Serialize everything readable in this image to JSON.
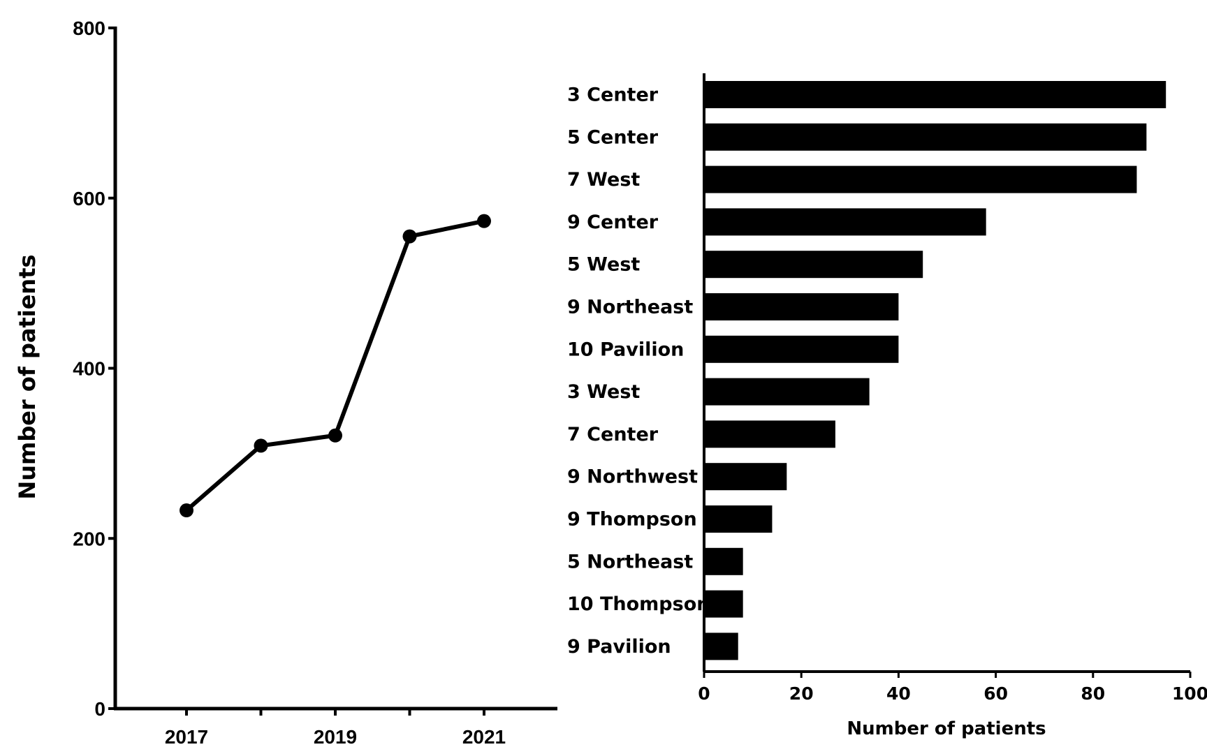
{
  "chart_data": [
    {
      "type": "line",
      "title": "",
      "xlabel": "",
      "ylabel": "Number of patients",
      "x": [
        2017,
        2018,
        2019,
        2020,
        2021
      ],
      "xtick_labels": [
        "2017",
        "2019",
        "2021"
      ],
      "series": [
        {
          "values": [
            233,
            309,
            321,
            555,
            573
          ]
        }
      ],
      "ylim": [
        0,
        800
      ],
      "yticks": [
        "0",
        "200",
        "400",
        "600",
        "800"
      ],
      "grid": false
    },
    {
      "type": "bar",
      "orientation": "horizontal",
      "title": "",
      "xlabel": "Number of patients",
      "ylabel": "",
      "categories": [
        "3 Center",
        "5 Center",
        "7 West",
        "9 Center",
        "5 West",
        "9 Northeast",
        "10 Pavilion",
        "3 West",
        "7 Center",
        "9 Northwest",
        "9 Thompson",
        "5 Northeast",
        "10 Thompson",
        "9 Pavilion"
      ],
      "values": [
        95,
        91,
        89,
        58,
        45,
        40,
        40,
        34,
        27,
        17,
        14,
        8,
        8,
        7
      ],
      "xlim": [
        0,
        100
      ],
      "xticks": [
        "0",
        "20",
        "40",
        "60",
        "80",
        "100"
      ],
      "grid": false
    }
  ]
}
